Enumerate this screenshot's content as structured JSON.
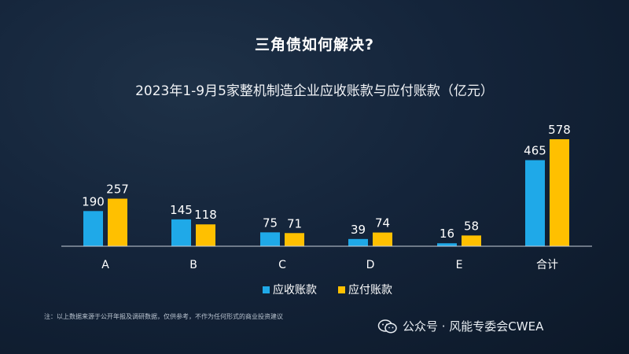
{
  "slide": {
    "title": "三角债如何解决?"
  },
  "chart_data": {
    "type": "bar",
    "title": "2023年1-9月5家整机制造企业应收账款与应付账款（亿元）",
    "categories": [
      "A",
      "B",
      "C",
      "D",
      "E",
      "合计"
    ],
    "series": [
      {
        "name": "应收账款",
        "values": [
          190,
          145,
          75,
          39,
          16,
          465
        ],
        "color": "#1fa9e8"
      },
      {
        "name": "应付账款",
        "values": [
          257,
          118,
          71,
          74,
          58,
          578
        ],
        "color": "#ffc000"
      }
    ],
    "ylim": [
      0,
      600
    ],
    "grid": false,
    "legend": "bottom-center"
  },
  "footnote": "注：以上数据来源于公开年报及调研数据，仅供参考，不作为任何形式的商业投资建议",
  "watermark": {
    "icon": "wechat-icon",
    "text": "公众号 · 风能专委会CWEA"
  }
}
